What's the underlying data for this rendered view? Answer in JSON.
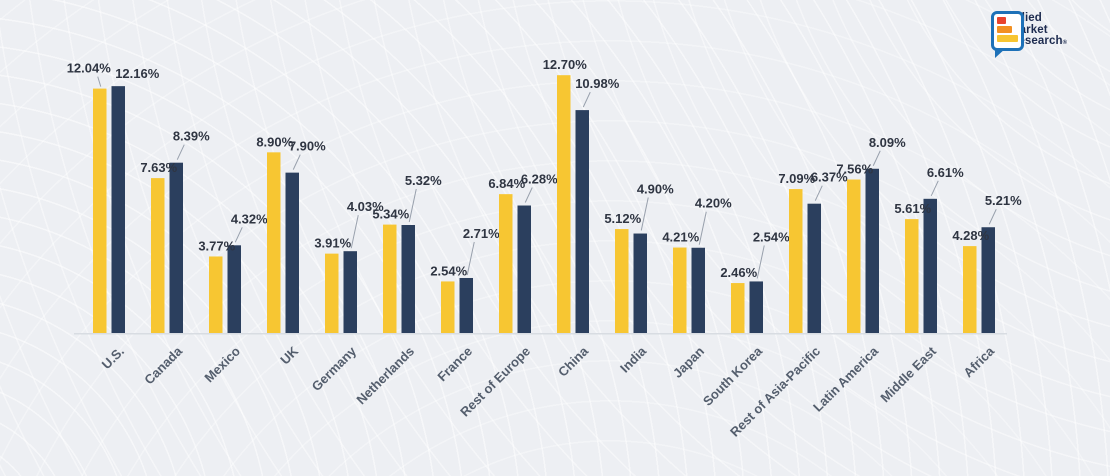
{
  "logo": {
    "line1": "Allied",
    "line2": "Market",
    "line3": "Research",
    "reg_mark": "®"
  },
  "chart_data": {
    "type": "bar",
    "title": "",
    "xlabel": "",
    "ylabel": "",
    "value_suffix": "%",
    "value_decimals": 2,
    "grid": false,
    "legend_position": "none",
    "ylim": [
      0,
      13.5
    ],
    "categories": [
      "U.S.",
      "Canada",
      "Mexico",
      "UK",
      "Germany",
      "Netherlands",
      "France",
      "Rest of Europe",
      "China",
      "India",
      "Japan",
      "South Korea",
      "Rest of Asia-Pacific",
      "Latin America",
      "Middle East",
      "Africa"
    ],
    "series": [
      {
        "color": "#f7c632",
        "values": [
          12.04,
          7.63,
          3.77,
          8.9,
          3.91,
          5.34,
          2.54,
          6.84,
          12.7,
          5.12,
          4.21,
          2.46,
          7.09,
          7.56,
          5.61,
          4.28
        ]
      },
      {
        "color": "#2b3f5e",
        "values": [
          12.16,
          8.39,
          4.32,
          7.9,
          4.03,
          5.32,
          2.71,
          6.28,
          10.98,
          4.9,
          4.2,
          2.54,
          6.37,
          8.09,
          6.61,
          5.21
        ]
      }
    ],
    "colors": {
      "axis_line": "#d8dce2",
      "leader_line": "#98a0ac",
      "value_label": "#2f3542",
      "category_label": "#545e6d"
    }
  }
}
